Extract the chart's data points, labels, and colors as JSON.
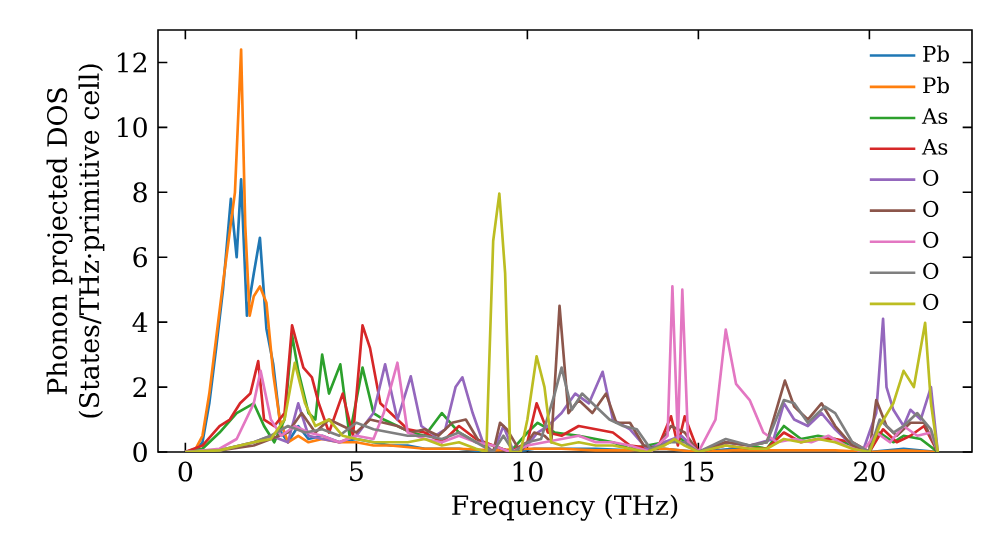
{
  "chart_data": {
    "type": "line",
    "xlabel": "Frequency (THz)",
    "ylabel": "Phonon projected DOS (States/THz·primitive cell)",
    "xlim": [
      -0.8,
      23
    ],
    "ylim": [
      0,
      13
    ],
    "xticks": [
      0,
      5,
      10,
      15,
      20
    ],
    "yticks": [
      0,
      2,
      4,
      6,
      8,
      10,
      12
    ],
    "legend": "top right",
    "line_style": "solid",
    "series": [
      {
        "name": "Pb",
        "color": "#1f77b4",
        "x": [
          0,
          0.3,
          0.5,
          0.7,
          0.9,
          1.1,
          1.33,
          1.5,
          1.63,
          1.8,
          2.0,
          2.18,
          2.37,
          2.57,
          2.8,
          3.0,
          3.3,
          3.6,
          4.0,
          4.5,
          5.0,
          5.5,
          6.0,
          6.5,
          7.0,
          8.0,
          8.8,
          9.2,
          9.6,
          10.2,
          11,
          12,
          13,
          14,
          15,
          16,
          17,
          18,
          19,
          20,
          21,
          22
        ],
        "values": [
          0,
          0.05,
          0.3,
          1.5,
          3.2,
          5.0,
          7.8,
          6.0,
          8.4,
          4.2,
          5.5,
          6.6,
          3.8,
          2.7,
          0.6,
          0.3,
          0.8,
          0.4,
          0.5,
          0.3,
          0.4,
          0.3,
          0.2,
          0.2,
          0.1,
          0.1,
          0,
          0.1,
          0,
          0.1,
          null,
          0.1,
          0.05,
          0.1,
          0,
          0.1,
          0.05,
          null,
          null,
          0,
          0.1,
          0
        ]
      },
      {
        "name": "Pb",
        "color": "#ff7f0e",
        "x": [
          0,
          0.3,
          0.5,
          0.7,
          0.9,
          1.1,
          1.3,
          1.45,
          1.63,
          1.75,
          1.88,
          2.0,
          2.18,
          2.37,
          2.57,
          2.76,
          3.0,
          3.3,
          3.6,
          4.0,
          4.5,
          5.0,
          5.5,
          6.0,
          7,
          8,
          9,
          10,
          11,
          12,
          13,
          14,
          15,
          16,
          17,
          18,
          19,
          20,
          21,
          22
        ],
        "values": [
          0,
          0.1,
          0.5,
          1.8,
          3.5,
          5.2,
          6.8,
          8.0,
          12.4,
          7.0,
          4.2,
          4.8,
          5.1,
          4.6,
          2.4,
          1.0,
          0.3,
          0.5,
          0.3,
          0.4,
          0.3,
          0.3,
          0.2,
          0.2,
          0.1,
          0.1,
          0.05,
          0.1,
          0.1,
          0.05,
          0.05,
          0.1,
          0,
          0.05,
          0.05,
          0.05,
          0.05,
          0,
          0.05,
          0
        ]
      },
      {
        "name": "As",
        "color": "#2ca02c",
        "x": [
          0,
          0.5,
          1.0,
          1.5,
          2.0,
          2.3,
          2.6,
          2.9,
          3.12,
          3.3,
          3.6,
          3.8,
          4.0,
          4.2,
          4.53,
          4.8,
          5.18,
          5.5,
          5.8,
          6.2,
          6.6,
          7.0,
          7.5,
          8.0,
          8.5,
          9.0,
          9.5,
          10.0,
          10.3,
          10.8,
          11.5,
          12.0,
          12.5,
          13.0,
          14.0,
          14.5,
          15.0,
          15.8,
          16.5,
          17.0,
          17.5,
          18.0,
          18.5,
          19.0,
          19.5,
          20.0,
          20.3,
          20.7,
          21.0,
          21.5,
          22.0
        ],
        "values": [
          0,
          0.1,
          0.6,
          1.2,
          1.5,
          0.8,
          0.3,
          1.0,
          3.6,
          2.5,
          1.2,
          1.0,
          3.0,
          1.8,
          2.7,
          0.5,
          2.6,
          1.2,
          1.0,
          0.8,
          0.6,
          0.5,
          1.2,
          0.6,
          0.3,
          0.2,
          0,
          0.6,
          0.9,
          0.6,
          0.5,
          0.4,
          0.3,
          0.1,
          0.3,
          0.4,
          0,
          0.3,
          0.2,
          0.1,
          0.8,
          0.4,
          0.5,
          0.4,
          0.2,
          0,
          0.6,
          0.3,
          0.5,
          0.4,
          0
        ]
      },
      {
        "name": "As",
        "color": "#d62728",
        "x": [
          0,
          0.5,
          1.0,
          1.3,
          1.6,
          1.9,
          2.13,
          2.3,
          2.6,
          2.9,
          3.12,
          3.45,
          3.7,
          3.9,
          4.2,
          4.6,
          4.9,
          5.18,
          5.4,
          5.7,
          6.0,
          6.5,
          7.0,
          7.5,
          8.0,
          8.5,
          9.0,
          9.5,
          10.0,
          10.27,
          10.6,
          11.0,
          11.5,
          12.0,
          12.5,
          13.0,
          13.8,
          14.2,
          14.4,
          14.6,
          15,
          15.8,
          16.5,
          17.0,
          17.5,
          18.0,
          18.5,
          19.0,
          19.5,
          20.0,
          20.4,
          20.8,
          21.2,
          21.6,
          22.0
        ],
        "values": [
          0,
          0.2,
          0.8,
          1.0,
          1.5,
          1.8,
          2.8,
          1.0,
          0.8,
          1.2,
          3.9,
          2.6,
          2.3,
          1.5,
          0.6,
          1.8,
          0.5,
          3.9,
          3.2,
          1.5,
          1.2,
          0.7,
          0.6,
          0.3,
          0.8,
          0.4,
          0.2,
          0,
          0.3,
          1.5,
          0.6,
          0.5,
          0.8,
          0.7,
          0.6,
          0.2,
          0.1,
          1.1,
          0.2,
          1.1,
          0,
          0.2,
          0.1,
          0.1,
          0.6,
          0.3,
          0.4,
          0.4,
          0.3,
          0,
          0.7,
          0.3,
          0.5,
          0.8,
          0
        ]
      },
      {
        "name": "O",
        "color": "#9467bd",
        "x": [
          0,
          1,
          2,
          2.5,
          3.0,
          3.3,
          3.6,
          4.0,
          4.5,
          5.0,
          5.5,
          5.84,
          6.2,
          6.59,
          6.9,
          7.3,
          7.6,
          7.9,
          8.1,
          8.4,
          8.7,
          9.0,
          9.3,
          9.6,
          10.0,
          10.3,
          10.6,
          11.0,
          11.4,
          11.8,
          12.2,
          12.5,
          13.0,
          13.5,
          14.0,
          14.5,
          15.0,
          15.8,
          16.5,
          17.2,
          17.5,
          17.8,
          18.2,
          18.6,
          19.0,
          19.5,
          19.8,
          20.2,
          20.4,
          20.5,
          20.7,
          21.0,
          21.2,
          21.5,
          21.8,
          22.0
        ],
        "values": [
          0,
          0.05,
          0.3,
          0.5,
          0.3,
          1.5,
          0.5,
          0.4,
          0.3,
          0.5,
          1.2,
          2.7,
          1.0,
          2.33,
          0.8,
          0.5,
          0.7,
          2.0,
          2.3,
          1.2,
          0.3,
          0,
          0.8,
          0,
          0.2,
          0.6,
          0.8,
          1.2,
          1.8,
          1.5,
          2.47,
          1.0,
          0.7,
          0.1,
          0.3,
          0.5,
          0,
          0.3,
          0.2,
          0.4,
          1.5,
          1.0,
          0.8,
          1.2,
          0.7,
          0.2,
          0,
          1.2,
          4.1,
          2.0,
          1.3,
          0.8,
          1.3,
          1.0,
          2.0,
          0
        ]
      },
      {
        "name": "O",
        "color": "#8c564b",
        "x": [
          0,
          1,
          2,
          2.5,
          3.0,
          3.4,
          3.8,
          4.2,
          4.6,
          5.0,
          5.4,
          5.8,
          6.2,
          6.6,
          7.0,
          7.4,
          7.8,
          8.2,
          8.6,
          9.0,
          9.2,
          9.4,
          9.8,
          10.2,
          10.5,
          10.7,
          10.94,
          11.2,
          11.5,
          11.9,
          12.3,
          12.6,
          13.0,
          13.4,
          13.8,
          14.2,
          14.6,
          15.0,
          15.8,
          16.5,
          17.0,
          17.53,
          17.8,
          18.2,
          18.6,
          19.0,
          19.5,
          20.0,
          20.2,
          20.5,
          20.8,
          21.2,
          21.6,
          22.0
        ],
        "values": [
          0,
          0.05,
          0.2,
          0.4,
          0.6,
          1.2,
          0.6,
          1.0,
          0.8,
          0.6,
          1.0,
          0.9,
          0.8,
          0.6,
          0.7,
          0.5,
          0.9,
          1.0,
          0.3,
          0,
          0.9,
          0.7,
          0,
          0.6,
          0.5,
          0.3,
          4.5,
          1.2,
          1.6,
          1.2,
          1.8,
          0.9,
          0.9,
          0.2,
          0.1,
          0.8,
          0.6,
          0,
          0.3,
          0.2,
          0.3,
          2.2,
          1.4,
          1.0,
          1.5,
          0.8,
          0.2,
          0,
          1.6,
          0.8,
          0.5,
          0.9,
          0.9,
          0
        ]
      },
      {
        "name": "O",
        "color": "#e377c2",
        "x": [
          0,
          1,
          1.5,
          2.0,
          2.2,
          2.5,
          2.8,
          3.2,
          3.6,
          4.0,
          4.5,
          5.0,
          5.5,
          5.8,
          6.2,
          6.5,
          7.0,
          7.5,
          8.0,
          8.5,
          9.0,
          9.5,
          10.0,
          10.5,
          11.0,
          11.5,
          12.0,
          12.5,
          13.0,
          13.6,
          13.9,
          14.1,
          14.24,
          14.4,
          14.53,
          14.7,
          15.0,
          15.5,
          15.8,
          16.1,
          16.5,
          16.9,
          17.3,
          17.8,
          18.3,
          18.8,
          19.3,
          19.8,
          20.2,
          20.6,
          21.0,
          21.4,
          21.8,
          22.0
        ],
        "values": [
          0,
          0.1,
          0.4,
          1.5,
          2.5,
          1.0,
          0.5,
          0.8,
          0.6,
          0.5,
          0.3,
          0.5,
          0.4,
          1.2,
          2.75,
          0.6,
          0.4,
          0.3,
          0.5,
          0.3,
          0.2,
          0,
          0.2,
          0.3,
          0.4,
          0.5,
          0.3,
          0.3,
          0.2,
          0,
          0.3,
          0.5,
          5.1,
          0.4,
          5.0,
          0.3,
          0,
          1.0,
          3.77,
          2.1,
          1.6,
          0.6,
          0.3,
          0.4,
          0.3,
          0.5,
          0.2,
          0,
          0.6,
          0.3,
          0.8,
          0.5,
          0.6,
          0
        ]
      },
      {
        "name": "O",
        "color": "#7f7f7f",
        "x": [
          0,
          1,
          2,
          2.5,
          3.0,
          3.5,
          4.0,
          4.5,
          5.0,
          5.5,
          6.0,
          6.5,
          7.0,
          7.5,
          8.0,
          8.5,
          9.0,
          9.3,
          9.6,
          10.0,
          10.4,
          10.8,
          11.0,
          11.3,
          11.6,
          12.0,
          12.4,
          12.8,
          13.2,
          13.6,
          14.2,
          14.6,
          15.0,
          15.8,
          16.5,
          17.0,
          17.5,
          17.8,
          18.2,
          18.7,
          19.0,
          19.5,
          20.0,
          20.3,
          20.7,
          21.0,
          21.4,
          21.8,
          22.0
        ],
        "values": [
          0,
          0.05,
          0.3,
          0.5,
          0.8,
          0.6,
          0.7,
          0.5,
          0.9,
          0.7,
          0.6,
          0.5,
          0.5,
          0.4,
          0.6,
          0.3,
          0,
          0.5,
          0,
          0.3,
          0.4,
          1.8,
          2.6,
          1.3,
          1.8,
          1.4,
          1.0,
          0.8,
          0.7,
          0.1,
          0.3,
          0.3,
          0,
          0.4,
          0.2,
          0.3,
          1.6,
          1.5,
          0.9,
          1.4,
          1.2,
          0.3,
          0,
          1.0,
          0.6,
          0.8,
          1.2,
          0.7,
          0
        ]
      },
      {
        "name": "O",
        "color": "#bcbd22",
        "x": [
          0,
          1,
          2,
          2.5,
          2.9,
          3.2,
          3.5,
          3.8,
          4.2,
          4.6,
          5.0,
          5.5,
          6.0,
          6.5,
          7.0,
          7.5,
          8.0,
          8.5,
          8.8,
          9.0,
          9.18,
          9.35,
          9.5,
          9.8,
          10.0,
          10.27,
          10.5,
          10.7,
          11.0,
          11.5,
          12.0,
          12.5,
          13.0,
          13.5,
          14.0,
          14.3,
          14.6,
          15.0,
          15.8,
          16.5,
          17.0,
          17.5,
          18.0,
          18.5,
          19.0,
          19.5,
          20.0,
          20.3,
          20.7,
          21.0,
          21.3,
          21.63,
          21.8,
          22.0
        ],
        "values": [
          0,
          0.05,
          0.3,
          0.4,
          1.0,
          2.75,
          1.5,
          0.8,
          1.0,
          0.5,
          0.4,
          0.3,
          0.3,
          0.3,
          0.4,
          0.2,
          0.3,
          0.1,
          0,
          6.5,
          7.96,
          5.5,
          0,
          0,
          1.0,
          2.95,
          2.0,
          0.3,
          0.2,
          0.3,
          0.2,
          0.2,
          0.1,
          0,
          0.2,
          0.4,
          0.2,
          0,
          0.2,
          0.1,
          0.1,
          0.4,
          0.3,
          0.4,
          0.3,
          0.1,
          0,
          0.8,
          1.5,
          2.5,
          2.0,
          3.98,
          1.5,
          0
        ]
      }
    ]
  }
}
